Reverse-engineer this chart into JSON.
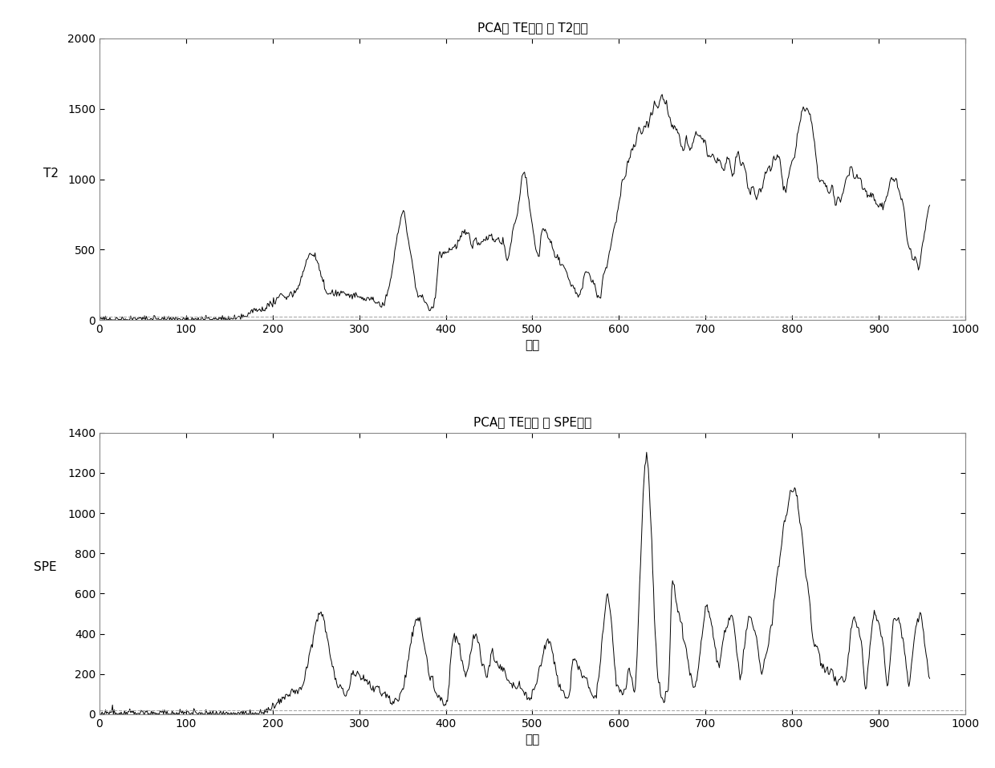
{
  "title1": "PCA对 TE数据 的 T2检测",
  "title2": "PCA对 TE数据 的 SPE检测",
  "xlabel": "样本",
  "ylabel1": "T2",
  "ylabel2": "SPE",
  "xlim": [
    0,
    1000
  ],
  "ylim1": [
    0,
    2000
  ],
  "ylim2": [
    0,
    1400
  ],
  "yticks1": [
    0,
    500,
    1000,
    1500,
    2000
  ],
  "yticks2": [
    0,
    200,
    400,
    600,
    800,
    1000,
    1200,
    1400
  ],
  "xticks": [
    0,
    100,
    200,
    300,
    400,
    500,
    600,
    700,
    800,
    900,
    1000
  ],
  "threshold_t2": 25,
  "threshold_spe": 18,
  "line_color": "#000000",
  "threshold_color": "#aaaaaa",
  "bg_color": "#ffffff",
  "line_width": 0.7,
  "threshold_lw": 0.8,
  "seed": 42
}
